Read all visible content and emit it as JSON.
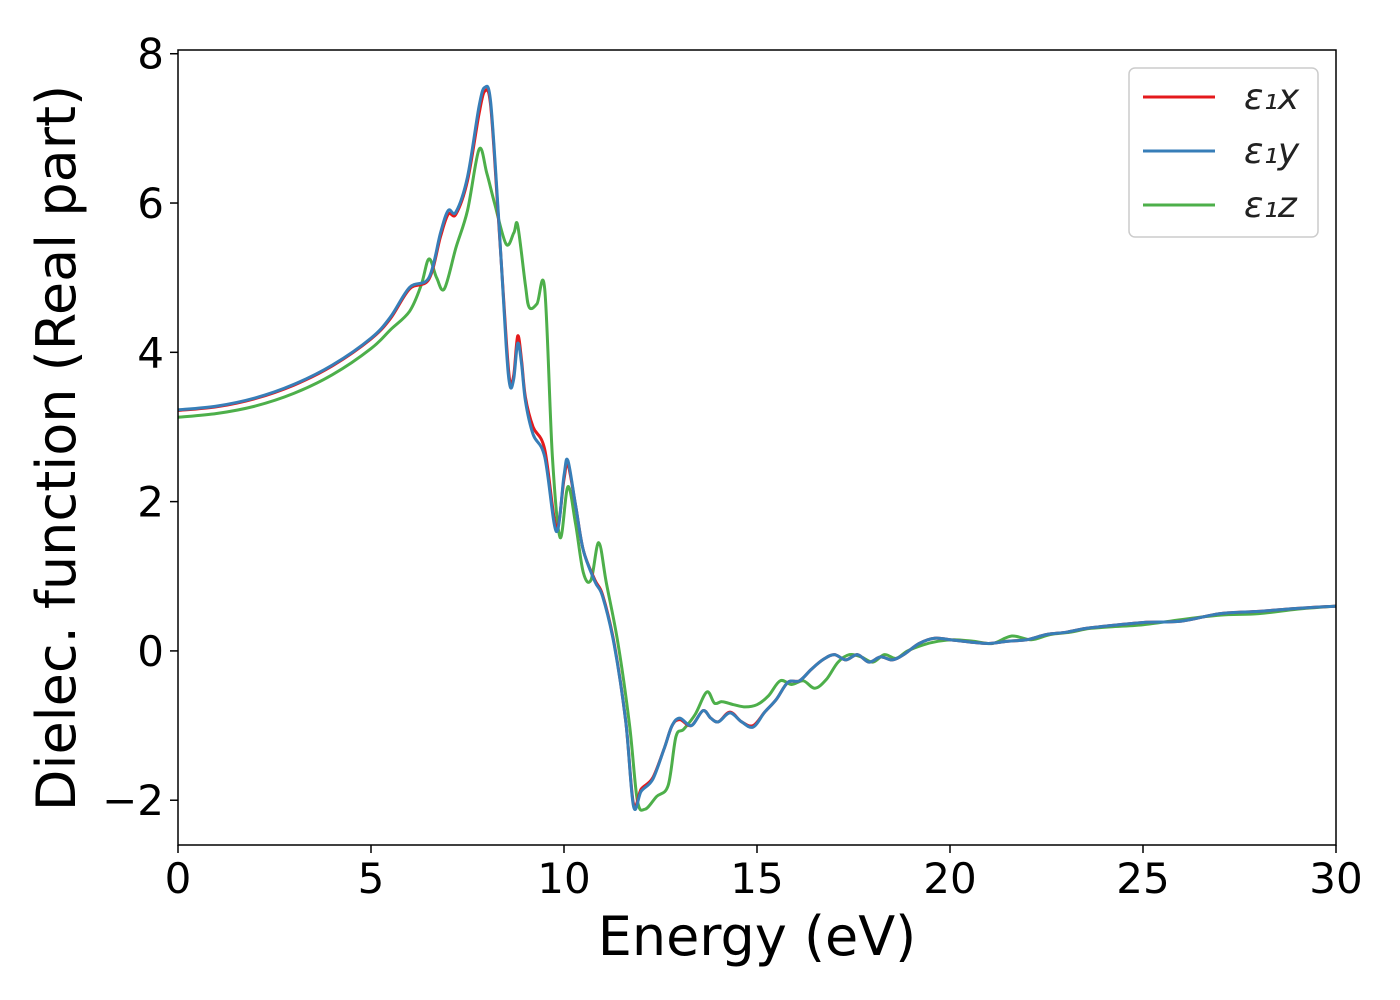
{
  "chart_data": {
    "type": "line",
    "title": "",
    "xlabel": "Energy (eV)",
    "ylabel": "Dielec. function (Real part)",
    "xlim": [
      0,
      30
    ],
    "ylim": [
      -2.6,
      8.05
    ],
    "xticks": [
      0,
      5,
      10,
      15,
      20,
      25,
      30
    ],
    "yticks": [
      -2,
      0,
      2,
      4,
      6,
      8
    ],
    "xtick_labels": [
      "0",
      "5",
      "10",
      "15",
      "20",
      "25",
      "30"
    ],
    "ytick_labels": [
      "−2",
      "0",
      "2",
      "4",
      "6",
      "8"
    ],
    "grid": false,
    "legend_position": "top-right",
    "series": [
      {
        "name": "ε₁x",
        "color": "#e41a1c",
        "x": [
          0,
          1,
          2,
          3,
          4,
          5,
          5.5,
          6,
          6.5,
          6.8,
          7.0,
          7.2,
          7.5,
          7.8,
          7.95,
          8.1,
          8.3,
          8.5,
          8.6,
          8.7,
          8.8,
          8.9,
          9.0,
          9.2,
          9.5,
          9.8,
          10.0,
          10.1,
          10.3,
          10.5,
          10.8,
          11.0,
          11.3,
          11.6,
          11.8,
          12.0,
          12.3,
          12.6,
          12.8,
          13.0,
          13.3,
          13.6,
          13.8,
          14.0,
          14.3,
          14.6,
          14.9,
          15.2,
          15.5,
          15.8,
          16.1,
          16.4,
          16.7,
          17.0,
          17.3,
          17.6,
          17.9,
          18.2,
          18.5,
          18.8,
          19.2,
          19.6,
          20.0,
          20.5,
          21.0,
          21.5,
          22.0,
          22.5,
          23.0,
          23.5,
          24.0,
          25.0,
          26.0,
          27.0,
          28.0,
          29.0,
          30.0
        ],
        "y": [
          3.22,
          3.27,
          3.38,
          3.56,
          3.82,
          4.18,
          4.45,
          4.85,
          4.98,
          5.55,
          5.85,
          5.85,
          6.3,
          7.2,
          7.5,
          7.3,
          5.8,
          4.2,
          3.6,
          3.7,
          4.22,
          3.9,
          3.4,
          3.0,
          2.7,
          1.65,
          2.3,
          2.5,
          1.95,
          1.35,
          0.95,
          0.75,
          0.1,
          -0.95,
          -2.05,
          -1.85,
          -1.7,
          -1.3,
          -1.0,
          -0.92,
          -1.0,
          -0.8,
          -0.9,
          -0.95,
          -0.82,
          -0.95,
          -1.0,
          -0.82,
          -0.65,
          -0.42,
          -0.4,
          -0.25,
          -0.12,
          -0.05,
          -0.12,
          -0.05,
          -0.15,
          -0.08,
          -0.12,
          -0.05,
          0.1,
          0.17,
          0.15,
          0.12,
          0.1,
          0.13,
          0.15,
          0.22,
          0.25,
          0.3,
          0.33,
          0.38,
          0.4,
          0.5,
          0.53,
          0.57,
          0.6
        ]
      },
      {
        "name": "ε₁y",
        "color": "#377eb8",
        "x": [
          0,
          1,
          2,
          3,
          4,
          5,
          5.5,
          6,
          6.5,
          6.8,
          7.0,
          7.2,
          7.5,
          7.8,
          7.95,
          8.1,
          8.3,
          8.5,
          8.6,
          8.7,
          8.8,
          8.9,
          9.0,
          9.2,
          9.5,
          9.8,
          10.0,
          10.1,
          10.3,
          10.5,
          10.8,
          11.0,
          11.3,
          11.6,
          11.8,
          12.0,
          12.3,
          12.6,
          12.8,
          13.0,
          13.3,
          13.6,
          13.8,
          14.0,
          14.3,
          14.6,
          14.9,
          15.2,
          15.5,
          15.8,
          16.1,
          16.4,
          16.7,
          17.0,
          17.3,
          17.6,
          17.9,
          18.2,
          18.5,
          18.8,
          19.2,
          19.6,
          20.0,
          20.5,
          21.0,
          21.5,
          22.0,
          22.5,
          23.0,
          23.5,
          24.0,
          25.0,
          26.0,
          27.0,
          28.0,
          29.0,
          30.0
        ],
        "y": [
          3.23,
          3.28,
          3.39,
          3.57,
          3.83,
          4.19,
          4.47,
          4.87,
          5.0,
          5.6,
          5.9,
          5.88,
          6.35,
          7.3,
          7.55,
          7.35,
          5.85,
          4.1,
          3.55,
          3.65,
          4.12,
          3.85,
          3.35,
          2.9,
          2.6,
          1.6,
          2.35,
          2.55,
          1.95,
          1.35,
          0.93,
          0.73,
          0.08,
          -0.95,
          -2.08,
          -1.88,
          -1.72,
          -1.3,
          -1.0,
          -0.9,
          -1.0,
          -0.8,
          -0.9,
          -0.95,
          -0.83,
          -0.95,
          -1.02,
          -0.82,
          -0.65,
          -0.42,
          -0.4,
          -0.25,
          -0.12,
          -0.05,
          -0.12,
          -0.05,
          -0.15,
          -0.08,
          -0.12,
          -0.05,
          0.1,
          0.17,
          0.15,
          0.12,
          0.1,
          0.13,
          0.15,
          0.22,
          0.25,
          0.3,
          0.33,
          0.38,
          0.4,
          0.5,
          0.53,
          0.57,
          0.6
        ]
      },
      {
        "name": "ε₁z",
        "color": "#4daf4a",
        "x": [
          0,
          1,
          2,
          3,
          4,
          5,
          5.5,
          6,
          6.3,
          6.5,
          6.7,
          6.9,
          7.2,
          7.5,
          7.8,
          8.0,
          8.2,
          8.5,
          8.7,
          8.8,
          9.0,
          9.1,
          9.3,
          9.5,
          9.7,
          9.9,
          10.1,
          10.3,
          10.5,
          10.7,
          10.9,
          11.1,
          11.4,
          11.7,
          11.9,
          12.1,
          12.4,
          12.7,
          12.9,
          13.1,
          13.4,
          13.7,
          13.9,
          14.1,
          14.4,
          14.7,
          15.0,
          15.3,
          15.6,
          15.9,
          16.2,
          16.5,
          16.8,
          17.1,
          17.4,
          17.7,
          18.0,
          18.3,
          18.6,
          18.9,
          19.3,
          19.7,
          20.1,
          20.6,
          21.1,
          21.6,
          22.1,
          22.6,
          23.1,
          23.6,
          24.1,
          25.0,
          26.0,
          27.0,
          28.0,
          29.0,
          30.0
        ],
        "y": [
          3.13,
          3.18,
          3.28,
          3.45,
          3.7,
          4.05,
          4.3,
          4.55,
          4.9,
          5.25,
          5.0,
          4.85,
          5.4,
          5.9,
          6.72,
          6.4,
          6.0,
          5.45,
          5.6,
          5.7,
          4.9,
          4.6,
          4.65,
          4.85,
          2.6,
          1.52,
          2.2,
          1.7,
          1.05,
          0.95,
          1.45,
          0.9,
          0.1,
          -1.0,
          -2.0,
          -2.12,
          -1.95,
          -1.8,
          -1.15,
          -1.05,
          -0.85,
          -0.55,
          -0.7,
          -0.68,
          -0.72,
          -0.75,
          -0.72,
          -0.6,
          -0.4,
          -0.45,
          -0.4,
          -0.5,
          -0.38,
          -0.15,
          -0.05,
          -0.08,
          -0.15,
          -0.05,
          -0.1,
          0.0,
          0.08,
          0.13,
          0.15,
          0.13,
          0.1,
          0.2,
          0.15,
          0.22,
          0.25,
          0.3,
          0.32,
          0.35,
          0.42,
          0.48,
          0.5,
          0.56,
          0.6
        ]
      }
    ]
  }
}
